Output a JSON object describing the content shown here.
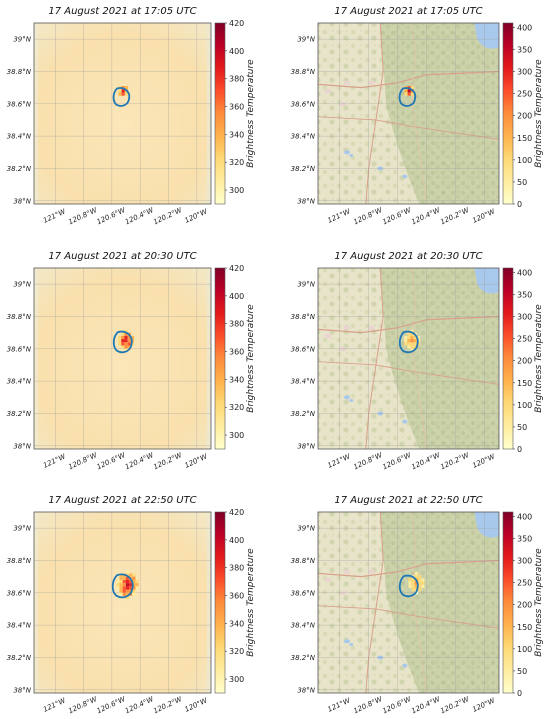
{
  "chart_data": [
    {
      "type": "heatmap",
      "title": "17 August 2021 at 17:05 UTC",
      "base": "satellite brightness temperature field",
      "x_ticks": [
        "121°W",
        "120.8°W",
        "120.6°W",
        "120.4°W",
        "120.2°W",
        "120°W"
      ],
      "y_ticks": [
        "39°N",
        "38.8°N",
        "38.6°N",
        "38.4°N",
        "38.2°N",
        "38°N"
      ],
      "colorbar": {
        "label": "Brightness Temperature",
        "ticks": [
          420,
          400,
          380,
          360,
          340,
          320,
          300
        ],
        "range": [
          290,
          420
        ]
      },
      "hotspot": {
        "lon": -120.52,
        "lat": 38.68,
        "extent": "small",
        "max_value": 420
      },
      "perimeter": {
        "color": "#1f77b4",
        "center_lon": -120.53,
        "center_lat": 38.64
      }
    },
    {
      "type": "heatmap",
      "title": "17 August 2021 at 17:05 UTC",
      "base": "terrain map",
      "x_ticks": [
        "121°W",
        "120.8°W",
        "120.6°W",
        "120.4°W",
        "120.2°W",
        "120°W"
      ],
      "y_ticks": [
        "39°N",
        "38.8°N",
        "38.6°N",
        "38.4°N",
        "38.2°N",
        "38°N"
      ],
      "colorbar": {
        "label": "Brightness Temperature",
        "ticks": [
          400,
          350,
          300,
          250,
          200,
          150,
          100,
          50,
          0
        ],
        "range": [
          0,
          410
        ]
      },
      "hotspot": {
        "lon": -120.52,
        "lat": 38.68,
        "extent": "small",
        "max_value": 400
      },
      "perimeter": {
        "color": "#1f77b4",
        "center_lon": -120.53,
        "center_lat": 38.64
      }
    },
    {
      "type": "heatmap",
      "title": "17 August 2021 at 20:30 UTC",
      "base": "satellite brightness temperature field",
      "x_ticks": [
        "121°W",
        "120.8°W",
        "120.6°W",
        "120.4°W",
        "120.2°W",
        "120°W"
      ],
      "y_ticks": [
        "39°N",
        "38.8°N",
        "38.6°N",
        "38.4°N",
        "38.2°N",
        "38°N"
      ],
      "colorbar": {
        "label": "Brightness Temperature",
        "ticks": [
          420,
          400,
          380,
          360,
          340,
          320,
          300
        ],
        "range": [
          290,
          420
        ]
      },
      "hotspot": {
        "lon": -120.5,
        "lat": 38.65,
        "extent": "medium",
        "max_value": 420
      },
      "perimeter": {
        "color": "#1f77b4",
        "center_lon": -120.52,
        "center_lat": 38.64
      }
    },
    {
      "type": "heatmap",
      "title": "17 August 2021 at 20:30 UTC",
      "base": "terrain map",
      "x_ticks": [
        "121°W",
        "120.8°W",
        "120.6°W",
        "120.4°W",
        "120.2°W",
        "120°W"
      ],
      "y_ticks": [
        "39°N",
        "38.8°N",
        "38.6°N",
        "38.4°N",
        "38.2°N",
        "38°N"
      ],
      "colorbar": {
        "label": "Brightness Temperature",
        "ticks": [
          400,
          350,
          300,
          250,
          200,
          150,
          100,
          50,
          0
        ],
        "range": [
          0,
          410
        ]
      },
      "hotspot": {
        "lon": -120.5,
        "lat": 38.65,
        "extent": "medium",
        "max_value": 300
      },
      "perimeter": {
        "color": "#1f77b4",
        "center_lon": -120.52,
        "center_lat": 38.64
      }
    },
    {
      "type": "heatmap",
      "title": "17 August 2021 at 22:50 UTC",
      "base": "satellite brightness temperature field",
      "x_ticks": [
        "121°W",
        "120.8°W",
        "120.6°W",
        "120.4°W",
        "120.2°W",
        "120°W"
      ],
      "y_ticks": [
        "39°N",
        "38.8°N",
        "38.6°N",
        "38.4°N",
        "38.2°N",
        "38°N"
      ],
      "colorbar": {
        "label": "Brightness Temperature",
        "ticks": [
          420,
          400,
          380,
          360,
          340,
          320,
          300
        ],
        "range": [
          290,
          420
        ]
      },
      "hotspot": {
        "lon": -120.49,
        "lat": 38.65,
        "extent": "large",
        "max_value": 420
      },
      "perimeter": {
        "color": "#1f77b4",
        "center_lon": -120.52,
        "center_lat": 38.64
      }
    },
    {
      "type": "heatmap",
      "title": "17 August 2021 at 22:50 UTC",
      "base": "terrain map",
      "x_ticks": [
        "121°W",
        "120.8°W",
        "120.6°W",
        "120.4°W",
        "120.2°W",
        "120°W"
      ],
      "y_ticks": [
        "39°N",
        "38.8°N",
        "38.6°N",
        "38.4°N",
        "38.2°N",
        "38°N"
      ],
      "colorbar": {
        "label": "Brightness Temperature",
        "ticks": [
          400,
          350,
          300,
          250,
          200,
          150,
          100,
          50,
          0
        ],
        "range": [
          0,
          410
        ]
      },
      "hotspot": {
        "lon": -120.47,
        "lat": 38.66,
        "extent": "medium",
        "max_value": 300
      },
      "perimeter": {
        "color": "#1f77b4",
        "center_lon": -120.52,
        "center_lat": 38.64
      }
    }
  ],
  "colors": {
    "field_background": "#fae3b2",
    "terrain_background": "#e6e2c7",
    "perimeter": "#1f77b4",
    "colormap": [
      "#ffffcc",
      "#ffeda0",
      "#fed976",
      "#feb24c",
      "#fd8d3c",
      "#fc4e2a",
      "#e31a1c",
      "#bd0026",
      "#800026"
    ]
  }
}
